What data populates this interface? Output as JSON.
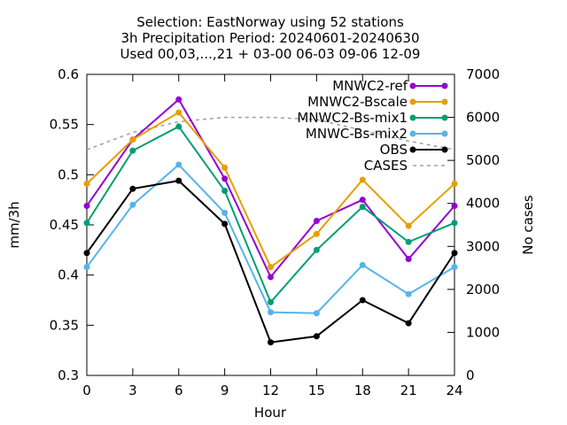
{
  "chart_data": {
    "type": "line",
    "title_lines": [
      "Selection: EastNorway using    52 stations",
      "3h Precipitation   Period: 20240601-20240630",
      "Used 00,03,...,21 + 03-00 06-03 09-06 12-09"
    ],
    "xlabel": "Hour",
    "ylabel": "mm/3h",
    "y2label": "No cases",
    "x": [
      0,
      3,
      6,
      9,
      12,
      15,
      18,
      21,
      24
    ],
    "xlim": [
      0,
      24
    ],
    "ylim": [
      0.3,
      0.6
    ],
    "y2lim": [
      0,
      7000
    ],
    "x_ticks": [
      "0",
      "3",
      "6",
      "9",
      "12",
      "15",
      "18",
      "21",
      "24"
    ],
    "y_ticks": [
      "0.3",
      "0.35",
      "0.4",
      "0.45",
      "0.5",
      "0.55",
      "0.6"
    ],
    "y2_ticks": [
      "0",
      "1000",
      "2000",
      "3000",
      "4000",
      "5000",
      "6000",
      "7000"
    ],
    "legend_position": "top-right",
    "series": [
      {
        "name": "MNWC2-ref",
        "color": "#9400d3",
        "marker": "filled-circle",
        "axis": "left",
        "values": [
          0.469,
          0.535,
          0.575,
          0.496,
          0.398,
          0.454,
          0.475,
          0.416,
          0.469
        ]
      },
      {
        "name": "MNWC2-Bscale",
        "color": "#e69f00",
        "marker": "filled-circle",
        "axis": "left",
        "values": [
          0.491,
          0.535,
          0.562,
          0.507,
          0.408,
          0.441,
          0.495,
          0.449,
          0.491
        ]
      },
      {
        "name": "MNWC2-Bs-mix1",
        "color": "#009e73",
        "marker": "filled-circle",
        "axis": "left",
        "values": [
          0.452,
          0.524,
          0.548,
          0.484,
          0.373,
          0.425,
          0.468,
          0.433,
          0.452
        ]
      },
      {
        "name": "MNWC-Bs-mix2",
        "color": "#56b4e9",
        "marker": "filled-circle",
        "axis": "left",
        "values": [
          0.408,
          0.47,
          0.51,
          0.462,
          0.363,
          0.362,
          0.41,
          0.381,
          0.408
        ]
      },
      {
        "name": "OBS",
        "color": "#000000",
        "marker": "filled-circle",
        "axis": "left",
        "values": [
          0.422,
          0.486,
          0.494,
          0.451,
          0.333,
          0.339,
          0.375,
          0.352,
          0.422
        ]
      },
      {
        "name": "CASES",
        "color": "#a0a0a0",
        "marker": "none",
        "dashed": true,
        "axis": "right",
        "values": [
          5250,
          5650,
          5900,
          6000,
          6000,
          5950,
          5700,
          5450,
          5250
        ]
      }
    ]
  }
}
